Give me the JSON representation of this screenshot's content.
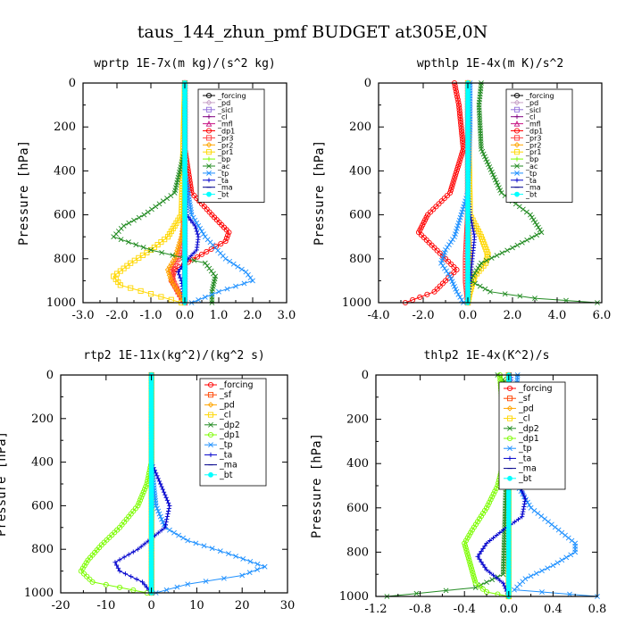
{
  "figure": {
    "title": "taus_144_zhun_pmf  BUDGET at305E,0N"
  },
  "chart_data": [
    {
      "type": "line",
      "title": "wprtp  1E-7x(m kg)/(s^2 kg)",
      "ylabel": "Pressure [hPa]",
      "xlim": [
        -3,
        3
      ],
      "ylim": [
        1000,
        0
      ],
      "xticks": [
        "-3.0",
        "-2.0",
        "-1.0",
        "0.0",
        "1.0",
        "2.0",
        "3.0"
      ],
      "yticks": [
        "0",
        "200",
        "400",
        "600",
        "800",
        "1000"
      ],
      "legend": "top-right",
      "series": [
        {
          "name": "_forcing",
          "color": "#000000",
          "marker": "circle",
          "p": [
            0,
            1000
          ],
          "x": [
            0,
            0
          ]
        },
        {
          "name": "_pd",
          "color": "#c8a2c8",
          "marker": "diamond",
          "p": [
            0,
            1000
          ],
          "x": [
            0,
            0
          ]
        },
        {
          "name": "_sicl",
          "color": "#9370db",
          "marker": "square",
          "p": [
            0,
            1000
          ],
          "x": [
            0,
            0
          ]
        },
        {
          "name": "_cl",
          "color": "#800080",
          "marker": "plus",
          "p": [
            0,
            1000
          ],
          "x": [
            0,
            0
          ]
        },
        {
          "name": "_mfl",
          "color": "#c71585",
          "marker": "triangle",
          "p": [
            0,
            1000
          ],
          "x": [
            0,
            0
          ]
        },
        {
          "name": "_dp1",
          "color": "#ff0000",
          "marker": "circle",
          "p": [
            0,
            300,
            500,
            600,
            680,
            720,
            780,
            850,
            900,
            950,
            1000
          ],
          "x": [
            0,
            0,
            0.2,
            0.8,
            1.3,
            1.2,
            0.5,
            -0.3,
            -0.4,
            -0.2,
            0
          ]
        },
        {
          "name": "_pr3",
          "color": "#ff4040",
          "marker": "square",
          "p": [
            0,
            500,
            700,
            800,
            850,
            900,
            950,
            1000
          ],
          "x": [
            0,
            0,
            -0.05,
            -0.2,
            -0.4,
            -0.35,
            -0.2,
            0
          ]
        },
        {
          "name": "_pr2",
          "color": "#ffa500",
          "marker": "diamond",
          "p": [
            0,
            600,
            700,
            800,
            850,
            900,
            950,
            1000
          ],
          "x": [
            0,
            0,
            -0.1,
            -0.3,
            -0.5,
            -0.4,
            -0.2,
            0
          ]
        },
        {
          "name": "_pr1",
          "color": "#ffd700",
          "marker": "square",
          "p": [
            0,
            600,
            700,
            760,
            820,
            880,
            920,
            960,
            1000
          ],
          "x": [
            0,
            -0.1,
            -0.5,
            -1.0,
            -1.6,
            -2.1,
            -1.9,
            -1.0,
            -0.1
          ]
        },
        {
          "name": "_bp",
          "color": "#7cfc00",
          "marker": "plus",
          "p": [
            0,
            1000
          ],
          "x": [
            0,
            0
          ]
        },
        {
          "name": "_ac",
          "color": "#228b22",
          "marker": "cross",
          "p": [
            0,
            300,
            500,
            600,
            650,
            700,
            760,
            820,
            880,
            950,
            1000
          ],
          "x": [
            0,
            0,
            -0.3,
            -1.2,
            -1.8,
            -2.1,
            -1.0,
            0.6,
            0.9,
            0.8,
            0.8
          ]
        },
        {
          "name": "_tp",
          "color": "#1e90ff",
          "marker": "cross",
          "p": [
            0,
            400,
            600,
            700,
            800,
            860,
            900,
            950,
            1000
          ],
          "x": [
            0,
            0,
            0.2,
            0.6,
            1.2,
            1.8,
            2.0,
            1.0,
            0.2
          ]
        },
        {
          "name": "_ta",
          "color": "#0000cd",
          "marker": "plus",
          "p": [
            0,
            400,
            600,
            650,
            700,
            760,
            800,
            860,
            900,
            1000
          ],
          "x": [
            0,
            0,
            0.05,
            0.3,
            0.4,
            0.35,
            0.1,
            -0.2,
            -0.1,
            0
          ]
        },
        {
          "name": "_ma",
          "color": "#00008b",
          "marker": "dash",
          "p": [
            0,
            1000
          ],
          "x": [
            0,
            0
          ]
        },
        {
          "name": "_bt",
          "color": "#00ffff",
          "marker": "star",
          "p": [
            0,
            1000
          ],
          "x": [
            0,
            0
          ]
        }
      ]
    },
    {
      "type": "line",
      "title": "wpthlp  1E-4x(m K)/s^2",
      "ylabel": "Pressure [hPa]",
      "xlim": [
        -4,
        6
      ],
      "ylim": [
        1000,
        0
      ],
      "xticks": [
        "-4.0",
        "-2.0",
        "0.0",
        "2.0",
        "4.0",
        "6.0"
      ],
      "yticks": [
        "0",
        "200",
        "400",
        "600",
        "800",
        "1000"
      ],
      "legend": "top-right",
      "series": [
        {
          "name": "_forcing",
          "color": "#000000",
          "marker": "circle",
          "p": [
            0,
            1000
          ],
          "x": [
            0,
            0
          ]
        },
        {
          "name": "_pd",
          "color": "#c8a2c8",
          "marker": "diamond",
          "p": [
            0,
            1000
          ],
          "x": [
            0,
            0
          ]
        },
        {
          "name": "_sicl",
          "color": "#9370db",
          "marker": "square",
          "p": [
            0,
            1000
          ],
          "x": [
            0,
            0
          ]
        },
        {
          "name": "_cl",
          "color": "#800080",
          "marker": "plus",
          "p": [
            0,
            1000
          ],
          "x": [
            0,
            0
          ]
        },
        {
          "name": "_mfl",
          "color": "#c71585",
          "marker": "triangle",
          "p": [
            0,
            1000
          ],
          "x": [
            0,
            0
          ]
        },
        {
          "name": "_dp1",
          "color": "#ff0000",
          "marker": "circle",
          "p": [
            0,
            100,
            300,
            500,
            600,
            680,
            750,
            850,
            950,
            1000
          ],
          "x": [
            -0.6,
            -0.4,
            -0.2,
            -0.8,
            -1.8,
            -2.2,
            -1.5,
            -0.5,
            -1.5,
            -2.8
          ]
        },
        {
          "name": "_pr3",
          "color": "#ff4040",
          "marker": "square",
          "p": [
            0,
            600,
            800,
            900,
            1000
          ],
          "x": [
            0,
            0,
            -0.1,
            -0.1,
            0
          ]
        },
        {
          "name": "_pr2",
          "color": "#ffa500",
          "marker": "diamond",
          "p": [
            0,
            600,
            800,
            900,
            1000
          ],
          "x": [
            0,
            0,
            0.1,
            0.1,
            0
          ]
        },
        {
          "name": "_pr1",
          "color": "#ffd700",
          "marker": "square",
          "p": [
            0,
            600,
            700,
            780,
            820,
            880,
            950,
            1000
          ],
          "x": [
            0,
            0.1,
            0.6,
            0.9,
            0.8,
            0.3,
            0.1,
            0
          ]
        },
        {
          "name": "_bp",
          "color": "#7cfc00",
          "marker": "plus",
          "p": [
            0,
            1000
          ],
          "x": [
            0,
            0
          ]
        },
        {
          "name": "_ac",
          "color": "#228b22",
          "marker": "cross",
          "p": [
            0,
            100,
            300,
            500,
            600,
            680,
            750,
            820,
            900,
            950,
            980,
            1000
          ],
          "x": [
            0.6,
            0.5,
            0.6,
            1.5,
            2.8,
            3.3,
            2.0,
            0.6,
            0.1,
            1.0,
            3.0,
            5.8
          ]
        },
        {
          "name": "_tp",
          "color": "#1e90ff",
          "marker": "cross",
          "p": [
            0,
            200,
            500,
            600,
            700,
            760,
            820,
            880,
            950,
            1000
          ],
          "x": [
            0.1,
            0.1,
            0,
            -0.3,
            -0.6,
            -1.0,
            -1.2,
            -0.8,
            -0.5,
            -0.2
          ]
        },
        {
          "name": "_ta",
          "color": "#0000cd",
          "marker": "plus",
          "p": [
            0,
            500,
            600,
            700,
            800,
            900,
            1000
          ],
          "x": [
            0,
            0,
            0.1,
            0.3,
            0.2,
            0.1,
            0
          ]
        },
        {
          "name": "_ma",
          "color": "#00008b",
          "marker": "dash",
          "p": [
            0,
            1000
          ],
          "x": [
            0,
            0
          ]
        },
        {
          "name": "_bt",
          "color": "#00ffff",
          "marker": "star",
          "p": [
            0,
            1000
          ],
          "x": [
            0,
            0
          ]
        }
      ]
    },
    {
      "type": "line",
      "title": "rtp2  1E-11x(kg^2)/(kg^2 s)",
      "ylabel": "Pressure [hPa]",
      "xlim": [
        -20,
        30
      ],
      "ylim": [
        1000,
        0
      ],
      "xticks": [
        "-20",
        "-10",
        "0",
        "10",
        "20",
        "30"
      ],
      "yticks": [
        "0",
        "200",
        "400",
        "600",
        "800",
        "1000"
      ],
      "legend": "top-right",
      "series": [
        {
          "name": "_forcing",
          "color": "#ff0000",
          "marker": "circle",
          "p": [
            0,
            1000
          ],
          "x": [
            0,
            0
          ]
        },
        {
          "name": "_sf",
          "color": "#ff4500",
          "marker": "square",
          "p": [
            0,
            1000
          ],
          "x": [
            0,
            0
          ]
        },
        {
          "name": "_pd",
          "color": "#ffa500",
          "marker": "diamond",
          "p": [
            0,
            1000
          ],
          "x": [
            0,
            0
          ]
        },
        {
          "name": "_cl",
          "color": "#ffd700",
          "marker": "square",
          "p": [
            0,
            1000
          ],
          "x": [
            0,
            0
          ]
        },
        {
          "name": "_dp2",
          "color": "#228b22",
          "marker": "cross",
          "p": [
            0,
            1000
          ],
          "x": [
            0,
            0
          ]
        },
        {
          "name": "_dp1",
          "color": "#7cfc00",
          "marker": "circle",
          "p": [
            0,
            400,
            500,
            600,
            700,
            780,
            850,
            900,
            950,
            1000
          ],
          "x": [
            0,
            0,
            -1,
            -3,
            -7,
            -11,
            -14,
            -15.5,
            -13,
            -1
          ]
        },
        {
          "name": "_tp",
          "color": "#1e90ff",
          "marker": "cross",
          "p": [
            0,
            400,
            600,
            700,
            760,
            820,
            880,
            920,
            960,
            1000
          ],
          "x": [
            0,
            0,
            1,
            3,
            8,
            17,
            25,
            20,
            8,
            1
          ]
        },
        {
          "name": "_ta",
          "color": "#0000cd",
          "marker": "plus",
          "p": [
            0,
            400,
            500,
            600,
            700,
            800,
            860,
            900,
            950,
            1000
          ],
          "x": [
            0,
            0,
            2,
            4,
            3,
            -3,
            -8,
            -7,
            -2,
            0
          ]
        },
        {
          "name": "_ma",
          "color": "#00008b",
          "marker": "dash",
          "p": [
            0,
            1000
          ],
          "x": [
            0,
            0
          ]
        },
        {
          "name": "_bt",
          "color": "#00ffff",
          "marker": "star",
          "p": [
            0,
            1000
          ],
          "x": [
            0,
            0
          ]
        }
      ]
    },
    {
      "type": "line",
      "title": "thlp2  1E-4x(K^2)/s",
      "ylabel": "Pressure [hPa]",
      "xlim": [
        -1.2,
        0.8
      ],
      "ylim": [
        1000,
        0
      ],
      "xticks": [
        "-1.2",
        "-0.8",
        "-0.4",
        "0.0",
        "0.4",
        "0.8"
      ],
      "yticks": [
        "0",
        "200",
        "400",
        "600",
        "800",
        "1000"
      ],
      "legend": "top-right",
      "series": [
        {
          "name": "_forcing",
          "color": "#ff0000",
          "marker": "circle",
          "p": [
            0,
            1000
          ],
          "x": [
            0,
            0
          ]
        },
        {
          "name": "_sf",
          "color": "#ff4500",
          "marker": "square",
          "p": [
            0,
            1000
          ],
          "x": [
            0,
            0
          ]
        },
        {
          "name": "_pd",
          "color": "#ffa500",
          "marker": "diamond",
          "p": [
            0,
            1000
          ],
          "x": [
            0,
            0
          ]
        },
        {
          "name": "_cl",
          "color": "#ffd700",
          "marker": "square",
          "p": [
            0,
            1000
          ],
          "x": [
            0,
            0
          ]
        },
        {
          "name": "_dp2",
          "color": "#228b22",
          "marker": "cross",
          "p": [
            0,
            20,
            100,
            200,
            400,
            900,
            960,
            1000
          ],
          "x": [
            -0.1,
            -0.05,
            -0.02,
            -0.02,
            -0.02,
            -0.05,
            -0.3,
            -1.1
          ]
        },
        {
          "name": "_dp1",
          "color": "#7cfc00",
          "marker": "circle",
          "p": [
            0,
            200,
            400,
            500,
            600,
            700,
            760,
            850,
            940,
            980,
            1000
          ],
          "x": [
            -0.08,
            -0.05,
            -0.05,
            -0.1,
            -0.2,
            -0.33,
            -0.4,
            -0.35,
            -0.3,
            -0.2,
            0
          ]
        },
        {
          "name": "_tp",
          "color": "#1e90ff",
          "marker": "cross",
          "p": [
            0,
            200,
            400,
            500,
            600,
            700,
            760,
            800,
            860,
            920,
            970,
            1000
          ],
          "x": [
            0.08,
            0.05,
            0.04,
            0.08,
            0.2,
            0.45,
            0.6,
            0.6,
            0.4,
            0.15,
            0.05,
            0.8
          ]
        },
        {
          "name": "_ta",
          "color": "#0000cd",
          "marker": "plus",
          "p": [
            0,
            200,
            400,
            500,
            560,
            640,
            700,
            760,
            820,
            880,
            940,
            1000
          ],
          "x": [
            0.02,
            0.03,
            0.05,
            0.1,
            0.15,
            0.12,
            -0.05,
            -0.2,
            -0.28,
            -0.2,
            -0.05,
            0
          ]
        },
        {
          "name": "_ma",
          "color": "#00008b",
          "marker": "dash",
          "p": [
            0,
            1000
          ],
          "x": [
            0,
            0
          ]
        },
        {
          "name": "_bt",
          "color": "#00ffff",
          "marker": "star",
          "p": [
            0,
            1000
          ],
          "x": [
            0,
            0
          ]
        }
      ]
    }
  ]
}
